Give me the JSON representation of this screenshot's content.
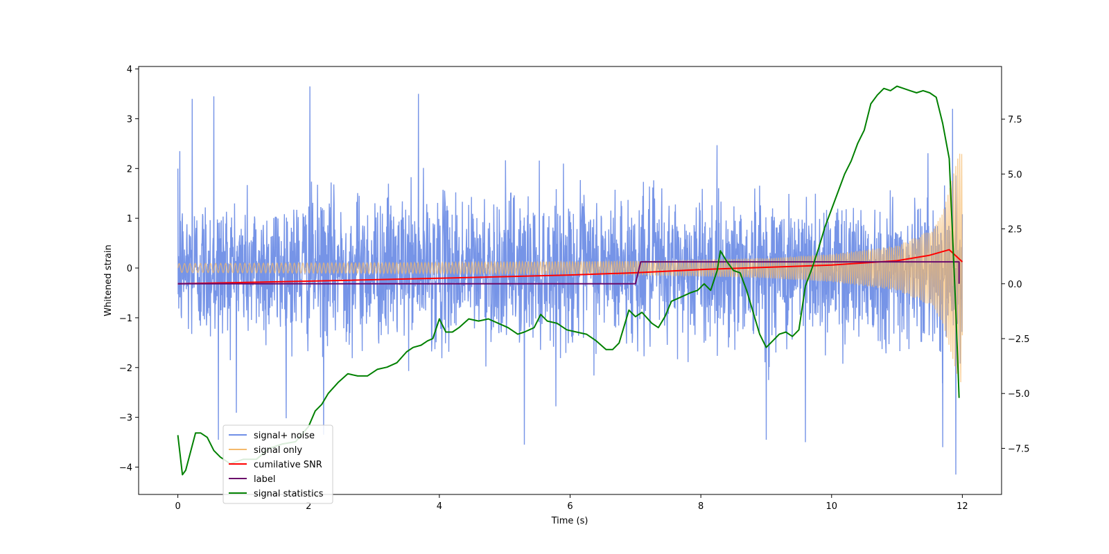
{
  "chart_data": {
    "type": "line",
    "title": "",
    "xlabel": "Time (s)",
    "ylabel": "Whitened strain",
    "ylabel_right": "",
    "xlim": [
      -0.6,
      12.6
    ],
    "ylim": [
      -4.55,
      4.05
    ],
    "ylim_right": [
      -9.6,
      9.9
    ],
    "x_ticks": [
      0,
      2,
      4,
      6,
      8,
      10,
      12
    ],
    "x_tick_labels": [
      "0",
      "2",
      "4",
      "6",
      "8",
      "10",
      "12"
    ],
    "y_ticks": [
      -4,
      -3,
      -2,
      -1,
      0,
      1,
      2,
      3,
      4
    ],
    "y_tick_labels": [
      "−4",
      "−3",
      "−2",
      "−1",
      "0",
      "1",
      "2",
      "3",
      "4"
    ],
    "y_right_ticks": [
      -7.5,
      -5.0,
      -2.5,
      0.0,
      2.5,
      5.0,
      7.5
    ],
    "y_right_tick_labels": [
      "−7.5",
      "−5.0",
      "−2.5",
      "0.0",
      "2.5",
      "5.0",
      "7.5"
    ],
    "grid": false,
    "legend_position": "lower-left",
    "legend": [
      {
        "label": "signal+ noise",
        "color": "#6f8ee6"
      },
      {
        "label": "signal only",
        "color": "#f5b96a"
      },
      {
        "label": "cumilative SNR",
        "color": "#ff0000"
      },
      {
        "label": "label",
        "color": "#6a0a6a"
      },
      {
        "label": "signal statistics",
        "color": "#008000"
      }
    ],
    "series": [
      {
        "name": "signal+ noise",
        "axis": "left",
        "color": "#6f8ee6",
        "x_range": [
          0,
          12
        ],
        "typical_peak_range": [
          2.2,
          -2.8
        ],
        "max_peaks": [
          [
            0.03,
            2.35
          ],
          [
            0.22,
            3.4
          ],
          [
            0.55,
            3.45
          ],
          [
            2.02,
            3.65
          ],
          [
            3.68,
            3.5
          ],
          [
            11.85,
            3.2
          ],
          [
            11.9,
            -4.15
          ],
          [
            0.62,
            -3.45
          ],
          [
            2.23,
            -3.35
          ],
          [
            5.3,
            -3.55
          ],
          [
            9.0,
            -3.45
          ],
          [
            9.6,
            -3.5
          ],
          [
            11.7,
            -3.6
          ]
        ]
      },
      {
        "name": "signal only",
        "axis": "left",
        "color": "#f5b96a",
        "x_range": [
          0,
          12
        ],
        "amplitude_points": [
          [
            0,
            0.09
          ],
          [
            4,
            0.11
          ],
          [
            7,
            0.14
          ],
          [
            9,
            0.2
          ],
          [
            10,
            0.28
          ],
          [
            11,
            0.45
          ],
          [
            11.5,
            0.75
          ],
          [
            11.7,
            1.1
          ],
          [
            11.85,
            1.8
          ],
          [
            11.95,
            2.3
          ]
        ]
      },
      {
        "name": "cumilative SNR",
        "axis": "right",
        "color": "#ff0000",
        "x": [
          0,
          2,
          4,
          6,
          7,
          8,
          9,
          10,
          10.5,
          11,
          11.5,
          11.8,
          12
        ],
        "y": [
          0.0,
          0.12,
          0.25,
          0.4,
          0.5,
          0.65,
          0.75,
          0.85,
          0.95,
          1.05,
          1.3,
          1.55,
          1.0
        ]
      },
      {
        "name": "label",
        "axis": "right",
        "color": "#6a0a6a",
        "x": [
          0,
          7.0,
          7.08,
          11.95,
          11.95
        ],
        "y": [
          0.0,
          0.0,
          1.0,
          1.0,
          0.0
        ]
      },
      {
        "name": "signal statistics",
        "axis": "right",
        "color": "#008000",
        "x": [
          0,
          0.07,
          0.12,
          0.27,
          0.35,
          0.45,
          0.55,
          0.65,
          0.8,
          1.0,
          1.2,
          1.4,
          1.6,
          1.8,
          2.0,
          2.1,
          2.2,
          2.3,
          2.45,
          2.6,
          2.75,
          2.9,
          3.05,
          3.2,
          3.35,
          3.5,
          3.6,
          3.72,
          3.82,
          3.9,
          4.0,
          4.1,
          4.2,
          4.3,
          4.45,
          4.6,
          4.75,
          4.9,
          5.05,
          5.2,
          5.3,
          5.45,
          5.55,
          5.65,
          5.8,
          5.95,
          6.1,
          6.25,
          6.4,
          6.55,
          6.65,
          6.75,
          6.9,
          7.0,
          7.1,
          7.25,
          7.35,
          7.45,
          7.55,
          7.7,
          7.85,
          7.95,
          8.05,
          8.15,
          8.25,
          8.3,
          8.4,
          8.5,
          8.6,
          8.7,
          8.8,
          8.9,
          9.0,
          9.1,
          9.2,
          9.3,
          9.4,
          9.5,
          9.6,
          9.7,
          9.8,
          9.9,
          10.0,
          10.1,
          10.2,
          10.3,
          10.4,
          10.5,
          10.6,
          10.7,
          10.8,
          10.9,
          11.0,
          11.1,
          11.2,
          11.3,
          11.4,
          11.5,
          11.6,
          11.7,
          11.8,
          11.9,
          11.95
        ],
        "y": [
          -6.9,
          -8.7,
          -8.5,
          -6.8,
          -6.8,
          -7.0,
          -7.6,
          -7.9,
          -8.2,
          -8.0,
          -8.0,
          -7.5,
          -7.3,
          -7.2,
          -6.5,
          -5.8,
          -5.5,
          -5.0,
          -4.5,
          -4.1,
          -4.2,
          -4.2,
          -3.9,
          -3.8,
          -3.6,
          -3.1,
          -2.9,
          -2.8,
          -2.6,
          -2.5,
          -1.6,
          -2.2,
          -2.2,
          -2.0,
          -1.6,
          -1.7,
          -1.6,
          -1.8,
          -2.0,
          -2.3,
          -2.2,
          -2.0,
          -1.4,
          -1.7,
          -1.8,
          -2.1,
          -2.2,
          -2.3,
          -2.6,
          -3.0,
          -3.0,
          -2.7,
          -1.2,
          -1.5,
          -1.3,
          -1.8,
          -2.0,
          -1.5,
          -0.8,
          -0.6,
          -0.4,
          -0.3,
          0.0,
          -0.3,
          0.6,
          1.5,
          1.0,
          0.6,
          0.5,
          -0.3,
          -1.3,
          -2.3,
          -2.9,
          -2.6,
          -2.3,
          -2.2,
          -2.4,
          -2.1,
          -0.1,
          0.7,
          1.6,
          2.6,
          3.4,
          4.2,
          5.0,
          5.6,
          6.4,
          7.0,
          8.2,
          8.6,
          8.9,
          8.8,
          9.0,
          8.9,
          8.8,
          8.7,
          8.8,
          8.7,
          8.5,
          7.3,
          5.7,
          -1.2,
          -5.2
        ]
      }
    ]
  }
}
